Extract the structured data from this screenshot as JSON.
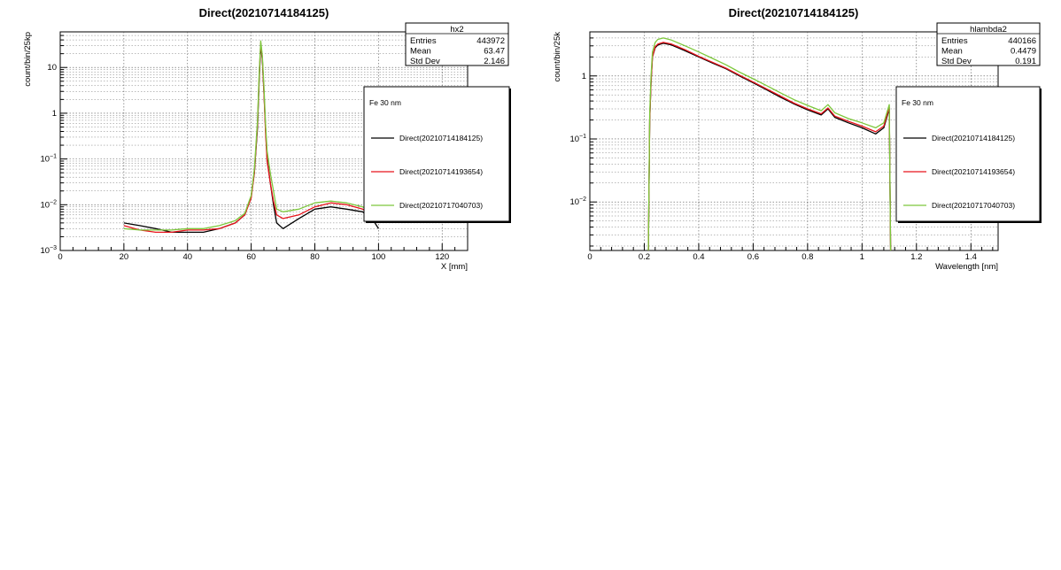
{
  "chart_data": [
    {
      "type": "line",
      "title": "Direct(20210714184125)",
      "xlabel": "X [mm]",
      "ylabel": "count/bin/25kp",
      "xlim": [
        0,
        128
      ],
      "ylim": [
        0.001,
        60
      ],
      "yscale": "log",
      "grid": true,
      "x_ticks": [
        0,
        20,
        40,
        60,
        80,
        100,
        120
      ],
      "y_ticks": [
        {
          "value": 0.001,
          "mant": "10",
          "exp": "−3"
        },
        {
          "value": 0.01,
          "mant": "10",
          "exp": "−2"
        },
        {
          "value": 0.1,
          "mant": "10",
          "exp": "−1"
        },
        {
          "value": 1,
          "mant": "1",
          "exp": ""
        },
        {
          "value": 10,
          "mant": "10",
          "exp": ""
        }
      ],
      "stats": {
        "name": "hx2",
        "rows": [
          {
            "label": "Entries",
            "value": "443972"
          },
          {
            "label": "Mean",
            "value": "63.47"
          },
          {
            "label": "Std Dev",
            "value": "2.146"
          }
        ]
      },
      "legend": {
        "header": "Fe 30 nm",
        "placement": "right",
        "entries": [
          "Direct(20210714184125)",
          "Direct(20210714193654)",
          "Direct(20210717040703)"
        ]
      },
      "series": [
        {
          "name": "Direct(20210714184125)",
          "color": "#000000",
          "x": [
            20,
            25,
            30,
            35,
            40,
            45,
            50,
            55,
            58,
            60,
            61,
            62,
            62.5,
            63,
            63.5,
            64,
            64.5,
            65,
            66,
            67,
            68,
            70,
            75,
            80,
            85,
            90,
            95,
            98,
            100
          ],
          "y": [
            0.004,
            0.0035,
            0.003,
            0.0025,
            0.0025,
            0.0025,
            0.003,
            0.004,
            0.006,
            0.015,
            0.05,
            0.5,
            5,
            30,
            15,
            3,
            0.5,
            0.1,
            0.03,
            0.01,
            0.004,
            0.003,
            0.005,
            0.008,
            0.009,
            0.008,
            0.007,
            0.005,
            0.003
          ]
        },
        {
          "name": "Direct(20210714193654)",
          "color": "#e8141c",
          "x": [
            20,
            25,
            30,
            35,
            40,
            45,
            50,
            55,
            58,
            60,
            61,
            62,
            62.5,
            63,
            63.5,
            64,
            64.5,
            65,
            66,
            67,
            68,
            70,
            75,
            80,
            85,
            90,
            95,
            98,
            100
          ],
          "y": [
            0.0035,
            0.0028,
            0.0025,
            0.0025,
            0.0028,
            0.0028,
            0.003,
            0.004,
            0.006,
            0.014,
            0.05,
            0.6,
            6,
            35,
            16,
            3,
            0.4,
            0.09,
            0.03,
            0.012,
            0.006,
            0.005,
            0.006,
            0.009,
            0.011,
            0.01,
            0.008,
            0.006,
            0.004
          ]
        },
        {
          "name": "Direct(20210717040703)",
          "color": "#7dc83c",
          "x": [
            20,
            25,
            30,
            35,
            40,
            45,
            50,
            55,
            58,
            60,
            61,
            62,
            62.5,
            63,
            63.5,
            64,
            64.5,
            65,
            66,
            67,
            68,
            70,
            75,
            80,
            85,
            90,
            95,
            98,
            100
          ],
          "y": [
            0.003,
            0.0028,
            0.0028,
            0.0028,
            0.003,
            0.003,
            0.0035,
            0.0045,
            0.0065,
            0.016,
            0.06,
            0.7,
            7,
            38,
            18,
            4,
            0.6,
            0.15,
            0.05,
            0.02,
            0.008,
            0.007,
            0.008,
            0.011,
            0.012,
            0.011,
            0.009,
            0.007,
            0.005
          ]
        }
      ]
    },
    {
      "type": "line",
      "title": "Direct(20210714184125)",
      "xlabel": "Wavelength [nm]",
      "ylabel": "count/bin/25k",
      "xlim": [
        0,
        1.5
      ],
      "ylim": [
        0.0017,
        5
      ],
      "yscale": "log",
      "grid": true,
      "x_ticks": [
        0,
        0.2,
        0.4,
        0.6,
        0.8,
        1,
        1.2,
        1.4
      ],
      "y_ticks": [
        {
          "value": 0.01,
          "mant": "10",
          "exp": "−2"
        },
        {
          "value": 0.1,
          "mant": "10",
          "exp": "−1"
        },
        {
          "value": 1,
          "mant": "1",
          "exp": ""
        }
      ],
      "stats": {
        "name": "hlambda2",
        "rows": [
          {
            "label": "Entries",
            "value": "440166"
          },
          {
            "label": "Mean",
            "value": "0.4479"
          },
          {
            "label": "Std Dev",
            "value": "0.191"
          }
        ]
      },
      "legend": {
        "header": "Fe 30 nm",
        "placement": "right",
        "entries": [
          "Direct(20210714184125)",
          "Direct(20210714193654)",
          "Direct(20210717040703)"
        ]
      },
      "series": [
        {
          "name": "Direct(20210714184125)",
          "color": "#000000",
          "x": [
            0.215,
            0.22,
            0.225,
            0.23,
            0.24,
            0.25,
            0.27,
            0.3,
            0.35,
            0.4,
            0.45,
            0.5,
            0.55,
            0.6,
            0.65,
            0.7,
            0.75,
            0.8,
            0.85,
            0.875,
            0.9,
            0.95,
            1.0,
            1.05,
            1.08,
            1.1,
            1.105
          ],
          "y": [
            0.0017,
            0.2,
            0.8,
            2.0,
            2.8,
            3.1,
            3.3,
            3.1,
            2.5,
            2.0,
            1.6,
            1.3,
            1.0,
            0.78,
            0.6,
            0.46,
            0.36,
            0.29,
            0.24,
            0.3,
            0.22,
            0.18,
            0.15,
            0.12,
            0.15,
            0.3,
            0.0017
          ]
        },
        {
          "name": "Direct(20210714193654)",
          "color": "#e8141c",
          "x": [
            0.215,
            0.22,
            0.225,
            0.23,
            0.24,
            0.25,
            0.27,
            0.3,
            0.35,
            0.4,
            0.45,
            0.5,
            0.55,
            0.6,
            0.65,
            0.7,
            0.75,
            0.8,
            0.85,
            0.875,
            0.9,
            0.95,
            1.0,
            1.05,
            1.08,
            1.1,
            1.105
          ],
          "y": [
            0.0017,
            0.2,
            0.8,
            2.0,
            2.9,
            3.2,
            3.4,
            3.2,
            2.6,
            2.05,
            1.65,
            1.33,
            1.03,
            0.8,
            0.62,
            0.48,
            0.37,
            0.3,
            0.25,
            0.31,
            0.23,
            0.19,
            0.16,
            0.13,
            0.16,
            0.32,
            0.0017
          ]
        },
        {
          "name": "Direct(20210717040703)",
          "color": "#7dc83c",
          "x": [
            0.215,
            0.22,
            0.225,
            0.23,
            0.24,
            0.25,
            0.27,
            0.3,
            0.35,
            0.4,
            0.45,
            0.5,
            0.55,
            0.6,
            0.65,
            0.7,
            0.75,
            0.8,
            0.85,
            0.875,
            0.9,
            0.95,
            1.0,
            1.05,
            1.08,
            1.1,
            1.105
          ],
          "y": [
            0.0017,
            0.25,
            1.0,
            2.4,
            3.4,
            3.8,
            4.0,
            3.7,
            3.0,
            2.4,
            1.9,
            1.5,
            1.15,
            0.9,
            0.7,
            0.54,
            0.42,
            0.34,
            0.28,
            0.35,
            0.26,
            0.21,
            0.18,
            0.15,
            0.18,
            0.35,
            0.0017
          ]
        }
      ]
    }
  ]
}
